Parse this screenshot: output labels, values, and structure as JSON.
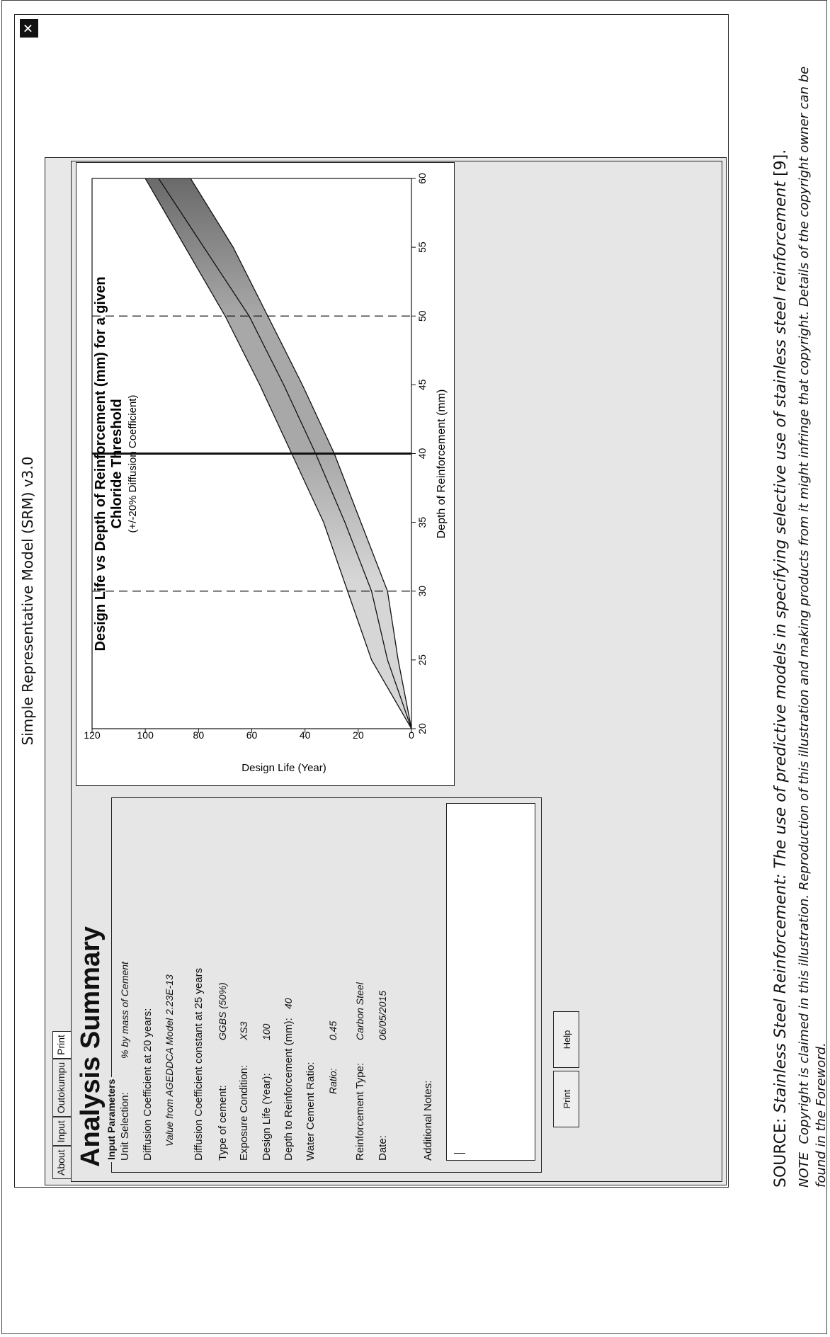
{
  "window": {
    "title": "Simple Representative Model (SRM) v3.0",
    "close_icon": "close-icon"
  },
  "tabs": [
    "About",
    "Input",
    "Outokumpu",
    "Print"
  ],
  "summary": {
    "heading": "Analysis Summary",
    "params_legend": "Input Parameters",
    "unit_selection_label": "Unit Selection:",
    "unit_selection_value": "% by mass of Cement",
    "diffusion20_label": "Diffusion Coefficient at 20 years:",
    "diffusion20_sub_label": "Value from AGEDDCA Model",
    "diffusion20_value": "2.23E-13",
    "diffusion25_label": "Diffusion Coefficient constant at 25 years",
    "cement_label": "Type of cement:",
    "cement_value": "GGBS (50%)",
    "exposure_label": "Exposure Condition:",
    "exposure_value": "XS3",
    "design_life_label": "Design Life (Year):",
    "design_life_value": "100",
    "depth_label": "Depth to Reinforcement (mm):",
    "depth_value": "40",
    "wcr_label": "Water Cement Ratio:",
    "ratio_sub_label": "Ratio:",
    "ratio_value": "0.45",
    "reinforcement_label": "Reinforcement Type:",
    "reinforcement_value": "Carbon Steel",
    "date_label": "Date:",
    "date_value": "06/05/2015",
    "notes_label": "Additional Notes:",
    "notes_value": ""
  },
  "buttons": {
    "print": "Print",
    "help": "Help"
  },
  "chart_data": {
    "type": "area",
    "title": "Design Life vs Depth of Reinforcement (mm) for a given Chloride Threshold",
    "title_line1": "Design Life vs Depth of Reinforcement (mm) for a given",
    "title_line2": "Chloride Threshold",
    "subtitle": "(+/-20% Diffusion Coefficient)",
    "xlabel": "Depth of Reinforcement (mm)",
    "ylabel": "Design Life (Year)",
    "xlim": [
      20,
      60
    ],
    "ylim": [
      0,
      120
    ],
    "xticks": [
      20,
      25,
      30,
      35,
      40,
      45,
      50,
      55,
      60
    ],
    "yticks": [
      0,
      20,
      40,
      60,
      80,
      100,
      120
    ],
    "grid": false,
    "x": [
      20,
      25,
      30,
      35,
      40,
      45,
      50,
      55,
      60
    ],
    "series": [
      {
        "values": [
          0,
          5,
          9,
          19,
          29,
          41,
          54,
          67,
          83
        ]
      },
      {
        "values": [
          0,
          9,
          15,
          25,
          36,
          48,
          61,
          78,
          95
        ]
      },
      {
        "values": [
          0,
          15,
          24,
          33,
          45,
          57,
          70,
          85,
          100
        ]
      }
    ],
    "vertical_lines": [
      {
        "x": 30,
        "style": "dashed"
      },
      {
        "x": 40,
        "style": "solid"
      },
      {
        "x": 50,
        "style": "dashed"
      }
    ],
    "colors": {
      "band_light": "#d6d6d6",
      "band_mid": "#a8a8a8",
      "band_dark": "#6a6a6a"
    }
  },
  "captions": {
    "source_prefix": "SOURCE: ",
    "source_text": "Stainless Steel Reinforcement: The use of predictive models in specifying selective use of stainless steel reinforcement",
    "source_suffix": " [9].",
    "note_prefix": "NOTE",
    "note_text": "Copyright is claimed in this illustration. Reproduction of this illustration and making products from it might infringe that copyright. Details of the copyright owner can be found in the Foreword."
  }
}
